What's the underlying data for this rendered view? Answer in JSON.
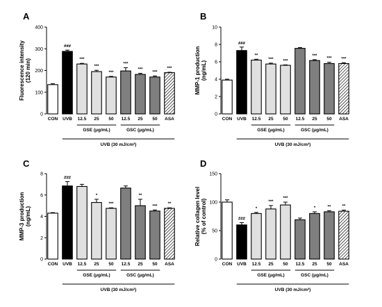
{
  "chart_data": [
    {
      "panel": "A",
      "type": "bar",
      "ylabel": [
        "Fluorescence intensity",
        "(120 min)"
      ],
      "ylim": [
        0,
        400
      ],
      "yticks": [
        "0",
        "100",
        "200",
        "300",
        "400"
      ],
      "categories": [
        "CON",
        "UVB",
        "12.5",
        "25",
        "50",
        "12.5",
        "25",
        "50",
        "ASA"
      ],
      "values": [
        135,
        288,
        230,
        195,
        170,
        198,
        182,
        170,
        190
      ],
      "errors": [
        4,
        6,
        3,
        6,
        3,
        15,
        5,
        5,
        2
      ],
      "significance": [
        "",
        "###",
        "***",
        "***",
        "***",
        "***",
        "***",
        "***",
        "***"
      ],
      "group_labels": [
        "GSE (μg/mL)",
        "GSC (μg/mL)"
      ],
      "treatment_label": "UVB (30 mJ/cm²)"
    },
    {
      "panel": "B",
      "type": "bar",
      "ylabel": [
        "MMP-1 production",
        "(ng/mL)"
      ],
      "ylim": [
        0,
        10
      ],
      "yticks": [
        "0",
        "2",
        "4",
        "6",
        "8",
        "10"
      ],
      "categories": [
        "CON",
        "UVB",
        "12.5",
        "25",
        "50",
        "12.5",
        "25",
        "50",
        "ASA"
      ],
      "values": [
        3.9,
        7.3,
        6.2,
        5.75,
        5.6,
        7.55,
        6.15,
        5.8,
        5.8
      ],
      "errors": [
        0.1,
        0.4,
        0.1,
        0.1,
        0.05,
        0.1,
        0.1,
        0.15,
        0.1
      ],
      "significance": [
        "",
        "###",
        "**",
        "***",
        "***",
        "",
        "***",
        "***",
        "***"
      ],
      "group_labels": [
        "GSE (μg/mL)",
        "GSC (μg/mL)"
      ],
      "treatment_label": "UVB (30 mJ/cm²)"
    },
    {
      "panel": "C",
      "type": "bar",
      "ylabel": [
        "MMP-3 production",
        "(ng/mL)"
      ],
      "ylim": [
        0,
        8
      ],
      "yticks": [
        "0",
        "2",
        "4",
        "6",
        "8"
      ],
      "categories": [
        "CON",
        "UVB",
        "12.5",
        "25",
        "50",
        "12.5",
        "25",
        "50",
        "ASA"
      ],
      "values": [
        4.3,
        6.85,
        6.8,
        5.3,
        4.75,
        6.65,
        5.0,
        4.5,
        4.75
      ],
      "errors": [
        0.05,
        0.4,
        0.2,
        0.3,
        0.05,
        0.2,
        0.6,
        0.1,
        0.05
      ],
      "significance": [
        "",
        "###",
        "",
        "*",
        "***",
        "",
        "**",
        "***",
        "**"
      ],
      "group_labels": [
        "GSE (μg/mL)",
        "GSC (μg/mL)"
      ],
      "treatment_label": "UVB (30 mJ/cm²)"
    },
    {
      "panel": "D",
      "type": "bar",
      "ylabel": [
        "Relative collagen level",
        "(% of control)"
      ],
      "ylim": [
        0,
        150
      ],
      "yticks": [
        "0",
        "50",
        "100",
        "150"
      ],
      "categories": [
        "CON",
        "UVB",
        "12.5",
        "25",
        "50",
        "12.5",
        "25",
        "50",
        "ASA"
      ],
      "values": [
        100,
        60,
        80,
        88,
        95,
        69,
        80,
        83,
        84
      ],
      "errors": [
        4,
        4,
        2,
        6,
        5,
        3,
        3,
        2,
        2
      ],
      "significance": [
        "",
        "###",
        "*",
        "***",
        "***",
        "",
        "*",
        "**",
        "**"
      ],
      "group_labels": [
        "GSE (μg/mL)",
        "GSC (μg/mL)"
      ],
      "treatment_label": "UVB (30 mJ/cm²)"
    }
  ],
  "colors": {
    "con": "#ffffff",
    "uvb": "#000000",
    "gse": "#e0e0e0",
    "gsc": "#7f7f7f",
    "asa": "hatched"
  }
}
